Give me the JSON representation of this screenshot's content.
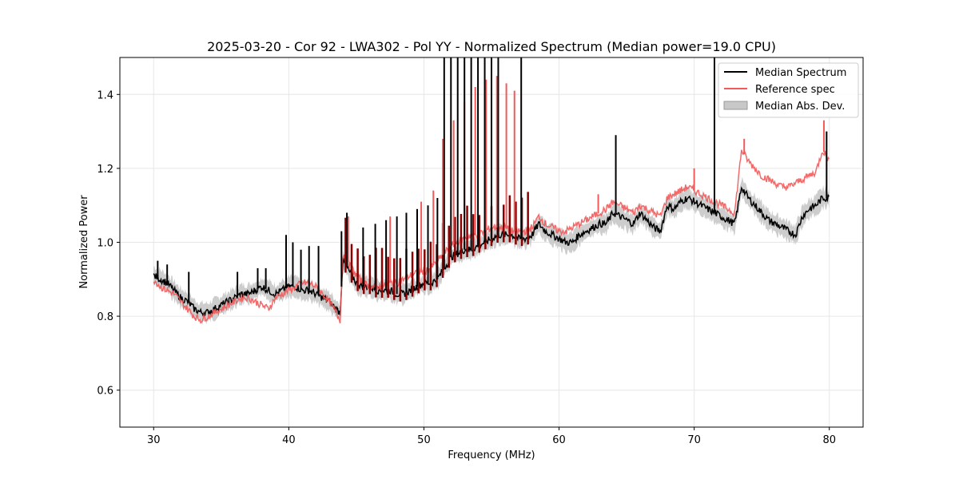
{
  "chart_data": {
    "type": "line",
    "title": "2025-03-20 - Cor 92 - LWA302 - Pol YY - Normalized Spectrum (Median power=19.0 CPU)",
    "xlabel": "Frequency (MHz)",
    "ylabel": "Normalized Power",
    "xlim": [
      27.5,
      82.5
    ],
    "ylim": [
      0.5,
      1.5
    ],
    "xticks": [
      "30",
      "40",
      "50",
      "60",
      "70",
      "80"
    ],
    "yticks": [
      "0.6",
      "0.8",
      "1.0",
      "1.2",
      "1.4"
    ],
    "grid": true,
    "legend_position": "top-right",
    "legend": [
      "Median Spectrum",
      "Reference spec",
      "Median Abs. Dev."
    ],
    "colors": {
      "median": "#000000",
      "reference": "#f25a5a",
      "mad": "#c8c8c8",
      "overlap": "#8b0000"
    },
    "x": [
      30,
      30.5,
      31,
      31.5,
      32,
      32.5,
      33,
      33.5,
      34,
      34.5,
      35,
      35.5,
      36,
      36.5,
      37,
      37.5,
      38,
      38.5,
      39,
      39.5,
      40,
      40.5,
      41,
      41.5,
      42,
      42.5,
      43,
      43.5,
      43.8,
      44,
      44.5,
      45,
      45.5,
      46,
      46.5,
      47,
      47.5,
      48,
      48.5,
      49,
      49.5,
      50,
      50.5,
      51,
      51.5,
      52,
      52.5,
      53,
      53.5,
      54,
      54.5,
      55,
      55.5,
      56,
      56.5,
      57,
      57.5,
      58,
      58.5,
      59,
      59.5,
      60,
      60.5,
      61,
      61.5,
      62,
      62.5,
      63,
      63.5,
      64,
      64.5,
      65,
      65.5,
      66,
      66.5,
      67,
      67.5,
      68,
      68.5,
      69,
      69.5,
      70,
      70.5,
      71,
      71.5,
      72,
      72.5,
      73,
      73.5,
      74,
      74.5,
      75,
      75.5,
      76,
      76.5,
      77,
      77.5,
      78,
      78.5,
      79,
      79.5,
      80
    ],
    "series": [
      {
        "name": "Median Spectrum",
        "values": [
          0.91,
          0.9,
          0.89,
          0.87,
          0.85,
          0.84,
          0.82,
          0.81,
          0.81,
          0.82,
          0.83,
          0.84,
          0.85,
          0.86,
          0.86,
          0.87,
          0.88,
          0.87,
          0.86,
          0.87,
          0.88,
          0.88,
          0.87,
          0.87,
          0.86,
          0.85,
          0.84,
          0.82,
          0.81,
          0.95,
          0.92,
          0.89,
          0.88,
          0.88,
          0.87,
          0.87,
          0.87,
          0.86,
          0.86,
          0.87,
          0.88,
          0.89,
          0.89,
          0.9,
          0.93,
          0.96,
          0.97,
          0.98,
          0.98,
          0.99,
          1.0,
          1.01,
          1.02,
          1.02,
          1.02,
          1.01,
          1.01,
          1.02,
          1.05,
          1.03,
          1.02,
          1.01,
          1.0,
          1.0,
          1.02,
          1.03,
          1.04,
          1.05,
          1.05,
          1.08,
          1.07,
          1.06,
          1.05,
          1.08,
          1.06,
          1.04,
          1.03,
          1.1,
          1.09,
          1.11,
          1.12,
          1.11,
          1.1,
          1.09,
          1.08,
          1.07,
          1.06,
          1.05,
          1.15,
          1.12,
          1.1,
          1.08,
          1.06,
          1.05,
          1.04,
          1.03,
          1.02,
          1.07,
          1.09,
          1.1,
          1.12,
          1.12
        ],
        "spikes": [
          [
            30.3,
            0.95
          ],
          [
            31.0,
            0.94
          ],
          [
            32.6,
            0.92
          ],
          [
            36.2,
            0.92
          ],
          [
            37.7,
            0.93
          ],
          [
            38.3,
            0.93
          ],
          [
            39.8,
            1.02
          ],
          [
            40.3,
            1.0
          ],
          [
            40.9,
            0.98
          ],
          [
            41.5,
            0.99
          ],
          [
            42.2,
            0.99
          ],
          [
            43.9,
            1.03
          ],
          [
            44.3,
            1.08
          ],
          [
            45.5,
            1.04
          ],
          [
            46.4,
            1.05
          ],
          [
            47.2,
            1.06
          ],
          [
            48.0,
            1.07
          ],
          [
            48.7,
            1.08
          ],
          [
            49.5,
            1.09
          ],
          [
            50.3,
            1.1
          ],
          [
            51.0,
            1.12
          ],
          [
            51.5,
            1.5
          ],
          [
            52.0,
            1.5
          ],
          [
            52.5,
            1.5
          ],
          [
            53.0,
            1.5
          ],
          [
            53.5,
            1.5
          ],
          [
            54.0,
            1.5
          ],
          [
            54.5,
            1.5
          ],
          [
            55.0,
            1.5
          ],
          [
            55.5,
            1.5
          ],
          [
            57.2,
            1.5
          ],
          [
            64.2,
            1.29
          ],
          [
            71.5,
            1.5
          ],
          [
            79.8,
            1.3
          ]
        ]
      },
      {
        "name": "Reference spec",
        "values": [
          0.9,
          0.88,
          0.87,
          0.86,
          0.84,
          0.82,
          0.8,
          0.79,
          0.8,
          0.81,
          0.82,
          0.83,
          0.84,
          0.85,
          0.85,
          0.84,
          0.83,
          0.82,
          0.85,
          0.86,
          0.87,
          0.88,
          0.89,
          0.89,
          0.88,
          0.86,
          0.84,
          0.81,
          0.79,
          0.97,
          0.94,
          0.91,
          0.89,
          0.88,
          0.88,
          0.88,
          0.89,
          0.89,
          0.9,
          0.91,
          0.92,
          0.92,
          0.93,
          0.95,
          0.97,
          0.99,
          1.0,
          1.01,
          1.02,
          1.02,
          1.03,
          1.04,
          1.04,
          1.04,
          1.03,
          1.03,
          1.03,
          1.04,
          1.07,
          1.05,
          1.04,
          1.03,
          1.03,
          1.04,
          1.05,
          1.06,
          1.07,
          1.08,
          1.09,
          1.11,
          1.1,
          1.09,
          1.08,
          1.1,
          1.09,
          1.08,
          1.07,
          1.12,
          1.13,
          1.14,
          1.15,
          1.14,
          1.13,
          1.12,
          1.11,
          1.1,
          1.09,
          1.08,
          1.25,
          1.22,
          1.2,
          1.18,
          1.17,
          1.16,
          1.15,
          1.15,
          1.16,
          1.17,
          1.18,
          1.19,
          1.25,
          1.22
        ],
        "spikes": [
          [
            44.4,
            1.07
          ],
          [
            47.5,
            1.07
          ],
          [
            49.8,
            1.11
          ],
          [
            50.7,
            1.14
          ],
          [
            51.4,
            1.28
          ],
          [
            52.2,
            1.33
          ],
          [
            53.0,
            1.38
          ],
          [
            53.8,
            1.42
          ],
          [
            54.6,
            1.44
          ],
          [
            55.4,
            1.45
          ],
          [
            56.1,
            1.43
          ],
          [
            56.7,
            1.41
          ],
          [
            62.9,
            1.13
          ],
          [
            70.0,
            1.2
          ],
          [
            73.7,
            1.28
          ],
          [
            79.6,
            1.33
          ]
        ]
      }
    ]
  }
}
